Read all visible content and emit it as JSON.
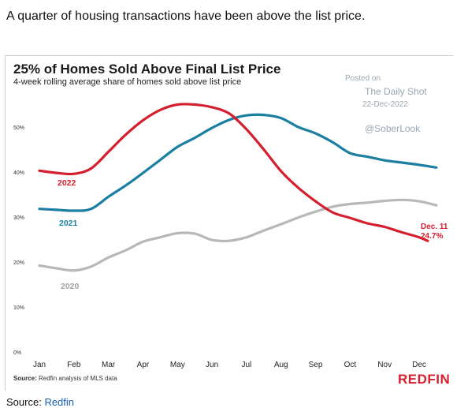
{
  "caption": "A quarter of housing transactions have been above the list price.",
  "watermark": {
    "posted_on": "Posted on",
    "site": "The Daily Shot",
    "date": "22-Dec-2022",
    "handle": "@SoberLook"
  },
  "footer": {
    "source_label": "Source:",
    "source_text": "Redfin analysis of MLS data",
    "brand": "REDFIN"
  },
  "page_source": {
    "label": "Source:",
    "link_text": "Redfin"
  },
  "chart_data": {
    "type": "line",
    "title": "25% of Homes Sold Above Final List Price",
    "subtitle": "4-week rolling average share of homes sold above list price",
    "xlabel": "",
    "ylabel": "",
    "x_ticks": [
      "Jan",
      "Feb",
      "Mar",
      "Apr",
      "May",
      "Jun",
      "Jul",
      "Aug",
      "Sep",
      "Oct",
      "Nov",
      "Dec"
    ],
    "y_ticks": [
      "0%",
      "10%",
      "20%",
      "30%",
      "40%",
      "50%"
    ],
    "ylim": [
      0,
      55
    ],
    "xlim": [
      1,
      12.6
    ],
    "grid": false,
    "series": [
      {
        "name": "2020",
        "color": "#b8b8b8",
        "x": [
          1.0,
          1.5,
          2.0,
          2.5,
          3.0,
          3.5,
          4.0,
          4.5,
          5.0,
          5.5,
          6.0,
          6.5,
          7.0,
          7.5,
          8.0,
          8.5,
          9.0,
          9.5,
          10.0,
          10.5,
          11.0,
          11.5,
          12.0,
          12.5
        ],
        "values": [
          19.2,
          18.6,
          18.1,
          19.0,
          21.0,
          22.6,
          24.5,
          25.5,
          26.4,
          26.3,
          24.9,
          24.7,
          25.5,
          27.0,
          28.4,
          29.9,
          31.2,
          32.3,
          32.9,
          33.2,
          33.6,
          33.8,
          33.5,
          32.6
        ]
      },
      {
        "name": "2021",
        "color": "#1a7fa0",
        "x": [
          1.0,
          1.5,
          2.0,
          2.5,
          3.0,
          3.5,
          4.0,
          4.5,
          5.0,
          5.5,
          6.0,
          6.5,
          7.0,
          7.5,
          8.0,
          8.5,
          9.0,
          9.5,
          10.0,
          10.5,
          11.0,
          11.5,
          12.0,
          12.5
        ],
        "values": [
          31.8,
          31.6,
          31.4,
          31.8,
          34.5,
          37.0,
          39.8,
          42.7,
          45.6,
          47.6,
          49.8,
          51.6,
          52.6,
          52.7,
          52.0,
          50.0,
          48.6,
          46.6,
          44.2,
          43.4,
          42.6,
          42.1,
          41.6,
          41.0
        ]
      },
      {
        "name": "2022",
        "color": "#d41f2e",
        "x": [
          1.0,
          1.5,
          2.0,
          2.5,
          3.0,
          3.5,
          4.0,
          4.5,
          5.0,
          5.5,
          6.0,
          6.5,
          7.0,
          7.5,
          8.0,
          8.5,
          9.0,
          9.5,
          10.0,
          10.5,
          11.0,
          11.5,
          12.0,
          12.25
        ],
        "values": [
          40.3,
          39.8,
          39.6,
          40.8,
          44.5,
          48.3,
          51.5,
          53.8,
          55.0,
          55.0,
          54.4,
          53.0,
          49.5,
          45.0,
          40.2,
          36.5,
          33.5,
          31.0,
          29.8,
          28.6,
          27.8,
          26.6,
          25.5,
          24.7
        ]
      }
    ],
    "series_labels": [
      "2020",
      "2021",
      "2022"
    ],
    "annotation": {
      "line1": "Dec. 11",
      "line2": "24.7%"
    }
  }
}
